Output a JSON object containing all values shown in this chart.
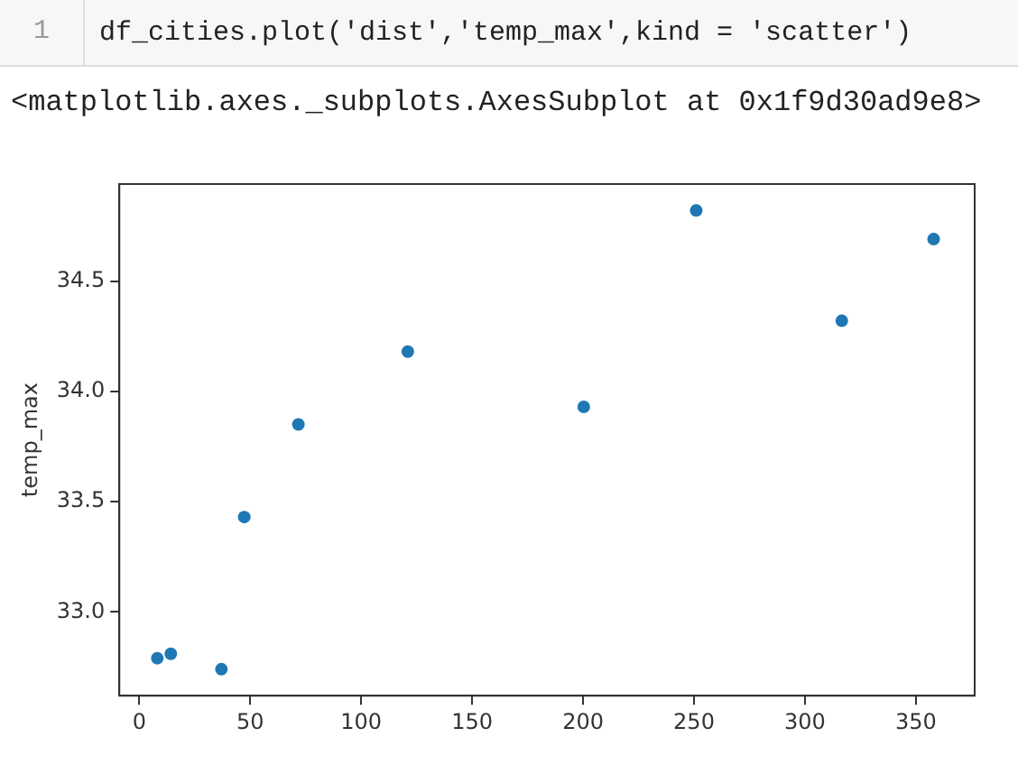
{
  "chart_data": {
    "type": "scatter",
    "annotations": [
      "1",
      "df_cities.plot('dist','temp_max',kind = 'scatter')",
      "<matplotlib.axes._subplots.AxesSubplot at 0x1f9d30ad9e8>"
    ],
    "ylabel": "temp_max",
    "x": [
      8.1,
      14.2,
      37,
      47.3,
      71.7,
      121,
      200.3,
      251,
      316.6,
      358
    ],
    "values": [
      32.79,
      32.81,
      32.74,
      33.43,
      33.85,
      34.18,
      33.93,
      34.82,
      34.32,
      34.69
    ],
    "color": "#1f77b4",
    "marker": "circle",
    "grid": false,
    "legend": false,
    "xlim": [
      -9,
      376.5
    ],
    "ylim": [
      32.62,
      34.94
    ],
    "xticks": [
      0,
      50,
      100,
      150,
      200,
      250,
      300,
      350
    ],
    "yticks": [
      {
        "value": 33,
        "label": "33.0"
      },
      {
        "value": 33.5,
        "label": "33.5"
      },
      {
        "value": 34,
        "label": "34.0"
      },
      {
        "value": 34.5,
        "label": "34.5"
      }
    ]
  }
}
